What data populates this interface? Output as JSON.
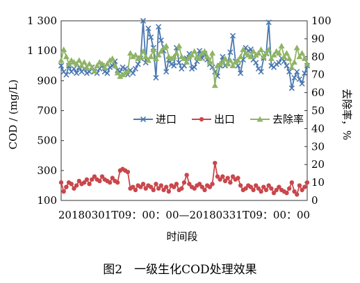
{
  "caption": "图2　一级生化COD处理效果",
  "chart_data": {
    "type": "line",
    "xlabel": "时间段",
    "x_tick_label": "20180301T09：00：00—20180331T09：00：00",
    "ylabel_left": "COD / (mg/L)",
    "ylabel_right": "去除率，%",
    "ylim_left": [
      100,
      1300
    ],
    "yticks_left": [
      "1 300",
      "1 100",
      "900",
      "700",
      "500",
      "300",
      "100"
    ],
    "ylim_right": [
      0,
      100
    ],
    "yticks_right": [
      "100",
      "90",
      "80",
      "70",
      "60",
      "50",
      "40",
      "30",
      "20",
      "10",
      "0"
    ],
    "legend_position": "center-right",
    "series": [
      {
        "name": "进口",
        "axis": "left",
        "color": "#4a78b0",
        "marker": "x",
        "values": [
          1000,
          960,
          940,
          1000,
          960,
          980,
          950,
          990,
          960,
          980,
          950,
          960,
          990,
          960,
          950,
          980,
          1000,
          960,
          950,
          990,
          1000,
          1030,
          970,
          960,
          990,
          980,
          940,
          970,
          950,
          980,
          1010,
          1050,
          1300,
          1020,
          1250,
          1190,
          1120,
          920,
          1260,
          1170,
          1100,
          960,
          1040,
          1010,
          1000,
          1120,
          1020,
          980,
          1000,
          1050,
          1080,
          980,
          990,
          1030,
          1100,
          1050,
          1080,
          1040,
          1010,
          990,
          960,
          930,
          1000,
          1060,
          1000,
          1020,
          1090,
          1200,
          1030,
          1000,
          950,
          1040,
          1120,
          1100,
          1110,
          1040,
          1020,
          980,
          960,
          1050,
          1080,
          1290,
          1000,
          990,
          1010,
          1020,
          1050,
          1030,
          1000,
          960,
          850,
          920,
          960,
          910,
          880,
          950,
          1000
        ]
      },
      {
        "name": "出口",
        "axis": "left",
        "color": "#c9474c",
        "marker": "dot",
        "values": [
          220,
          160,
          190,
          220,
          210,
          180,
          200,
          230,
          210,
          220,
          240,
          210,
          240,
          260,
          240,
          230,
          260,
          240,
          230,
          220,
          250,
          230,
          220,
          300,
          310,
          300,
          290,
          180,
          190,
          170,
          200,
          190,
          210,
          180,
          200,
          190,
          170,
          210,
          180,
          200,
          170,
          190,
          160,
          200,
          190,
          210,
          170,
          180,
          220,
          270,
          210,
          190,
          180,
          200,
          210,
          190,
          170,
          200,
          190,
          210,
          350,
          260,
          240,
          260,
          230,
          250,
          220,
          260,
          240,
          250,
          200,
          170,
          180,
          200,
          190,
          170,
          200,
          180,
          160,
          190,
          170,
          200,
          180,
          150,
          170,
          190,
          170,
          160,
          150,
          180,
          220,
          160,
          140,
          200,
          170,
          190,
          220
        ]
      },
      {
        "name": "去除率",
        "axis": "right",
        "color": "#8fb465",
        "marker": "triangle",
        "values": [
          78,
          84,
          80,
          76,
          78,
          77,
          76,
          78,
          75,
          77,
          74,
          76,
          74,
          72,
          75,
          77,
          76,
          74,
          76,
          78,
          79,
          75,
          71,
          69,
          70,
          71,
          72,
          82,
          80,
          81,
          79,
          80,
          83,
          80,
          78,
          80,
          84,
          79,
          81,
          83,
          85,
          86,
          80,
          79,
          80,
          82,
          86,
          80,
          79,
          77,
          80,
          81,
          83,
          80,
          79,
          82,
          83,
          80,
          77,
          82,
          64,
          75,
          76,
          77,
          79,
          76,
          78,
          75,
          77,
          78,
          80,
          84,
          82,
          81,
          80,
          83,
          81,
          82,
          84,
          80,
          82,
          84,
          79,
          81,
          83,
          82,
          86,
          80,
          82,
          79,
          74,
          77,
          85,
          80,
          82,
          79,
          76
        ]
      }
    ]
  }
}
